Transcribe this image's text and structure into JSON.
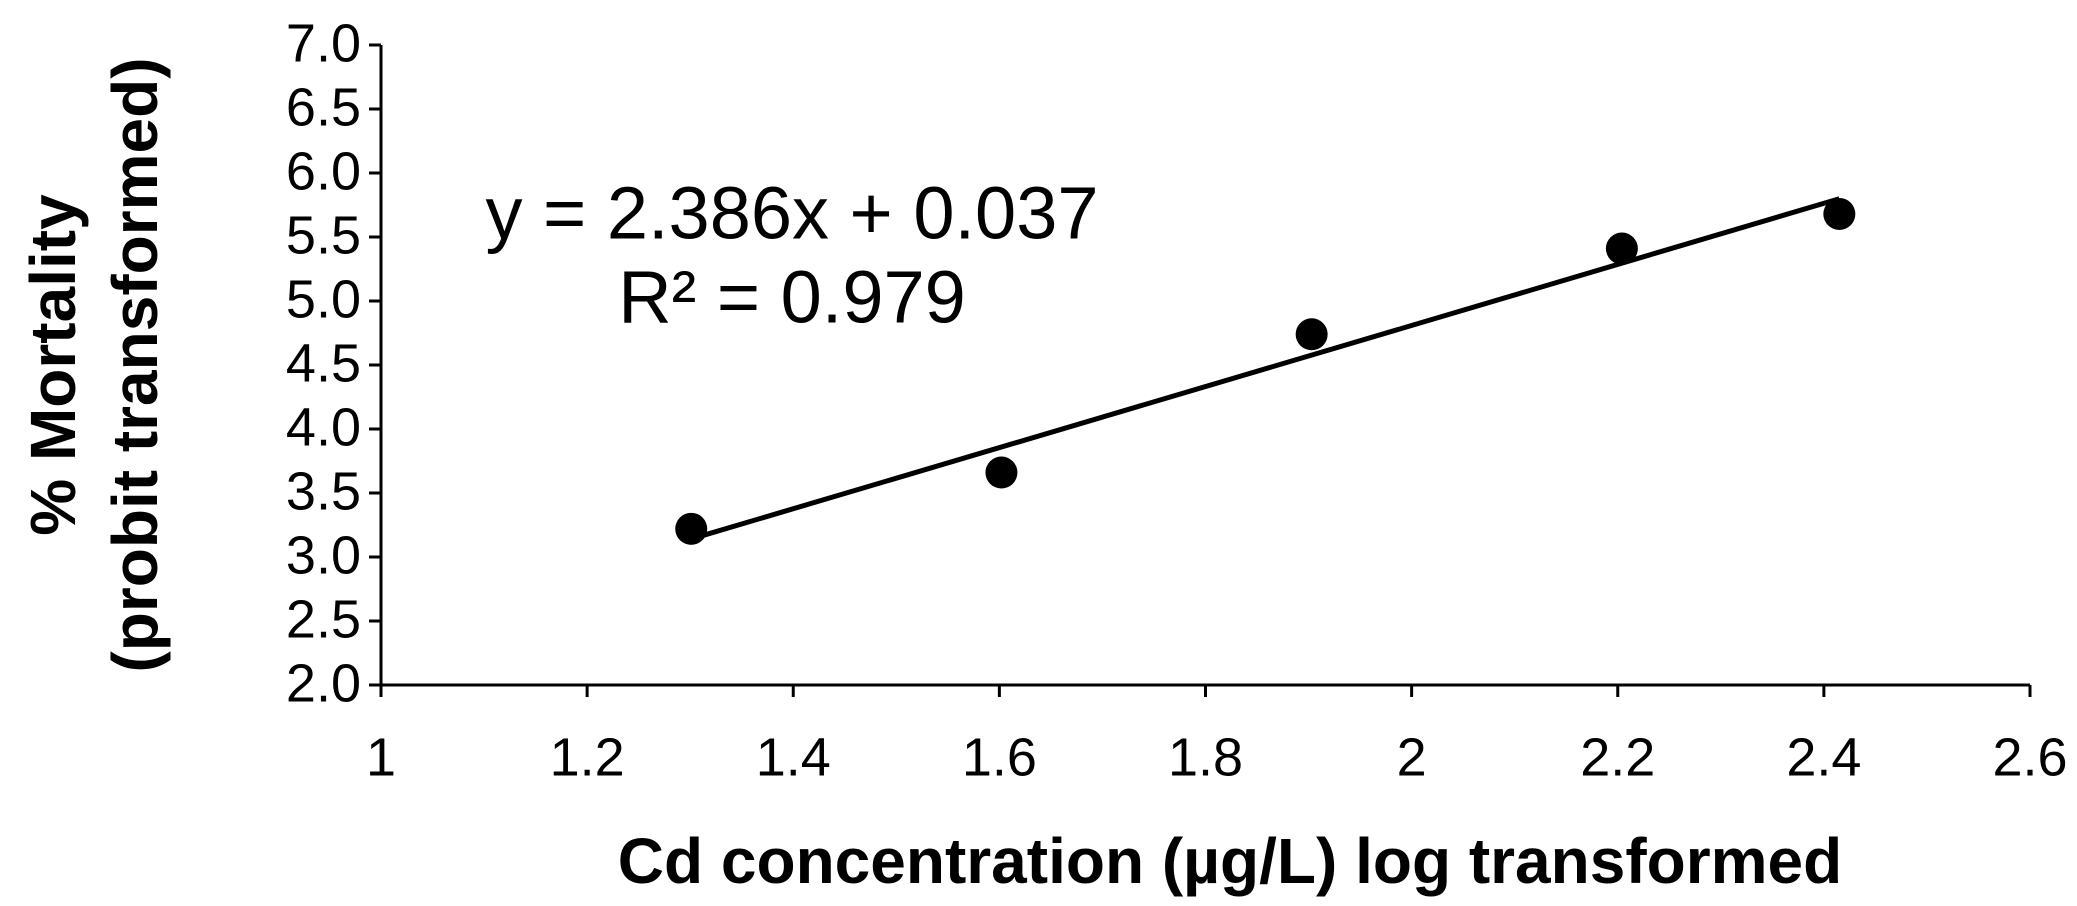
{
  "chart_data": {
    "type": "scatter",
    "x_label": "Cd concentration (µg/L)  log transformed",
    "y_label": [
      "%  Mortality",
      "(probit transformed)"
    ],
    "series": [
      {
        "color": "#000000",
        "x": [
          1.301,
          1.602,
          1.903,
          2.204,
          2.415
        ],
        "values": [
          3.22,
          3.66,
          4.74,
          5.41,
          5.68
        ]
      }
    ],
    "trendline": {
      "color": "#000000",
      "x": [
        1.301,
        2.415
      ],
      "values": [
        3.141,
        5.799
      ]
    },
    "annotations": [
      "y = 2.386x + 0.037",
      "R² = 0.979"
    ],
    "xlim": [
      1,
      2.6
    ],
    "xticks": [
      1,
      1.2,
      1.4,
      1.6,
      1.8,
      2,
      2.2,
      2.4,
      2.6
    ],
    "ylim": [
      2,
      7
    ],
    "yticks": [
      {
        "value": 2,
        "label": "2.0"
      },
      {
        "value": 2.5,
        "label": "2.5"
      },
      {
        "value": 3,
        "label": "3.0"
      },
      {
        "value": 3.5,
        "label": "3.5"
      },
      {
        "value": 4,
        "label": "4.0"
      },
      {
        "value": 4.5,
        "label": "4.5"
      },
      {
        "value": 5,
        "label": "5.0"
      },
      {
        "value": 5.5,
        "label": "5.5"
      },
      {
        "value": 6,
        "label": "6.0"
      },
      {
        "value": 6.5,
        "label": "6.5"
      },
      {
        "value": 7,
        "label": "7.0"
      }
    ],
    "grid": false
  }
}
